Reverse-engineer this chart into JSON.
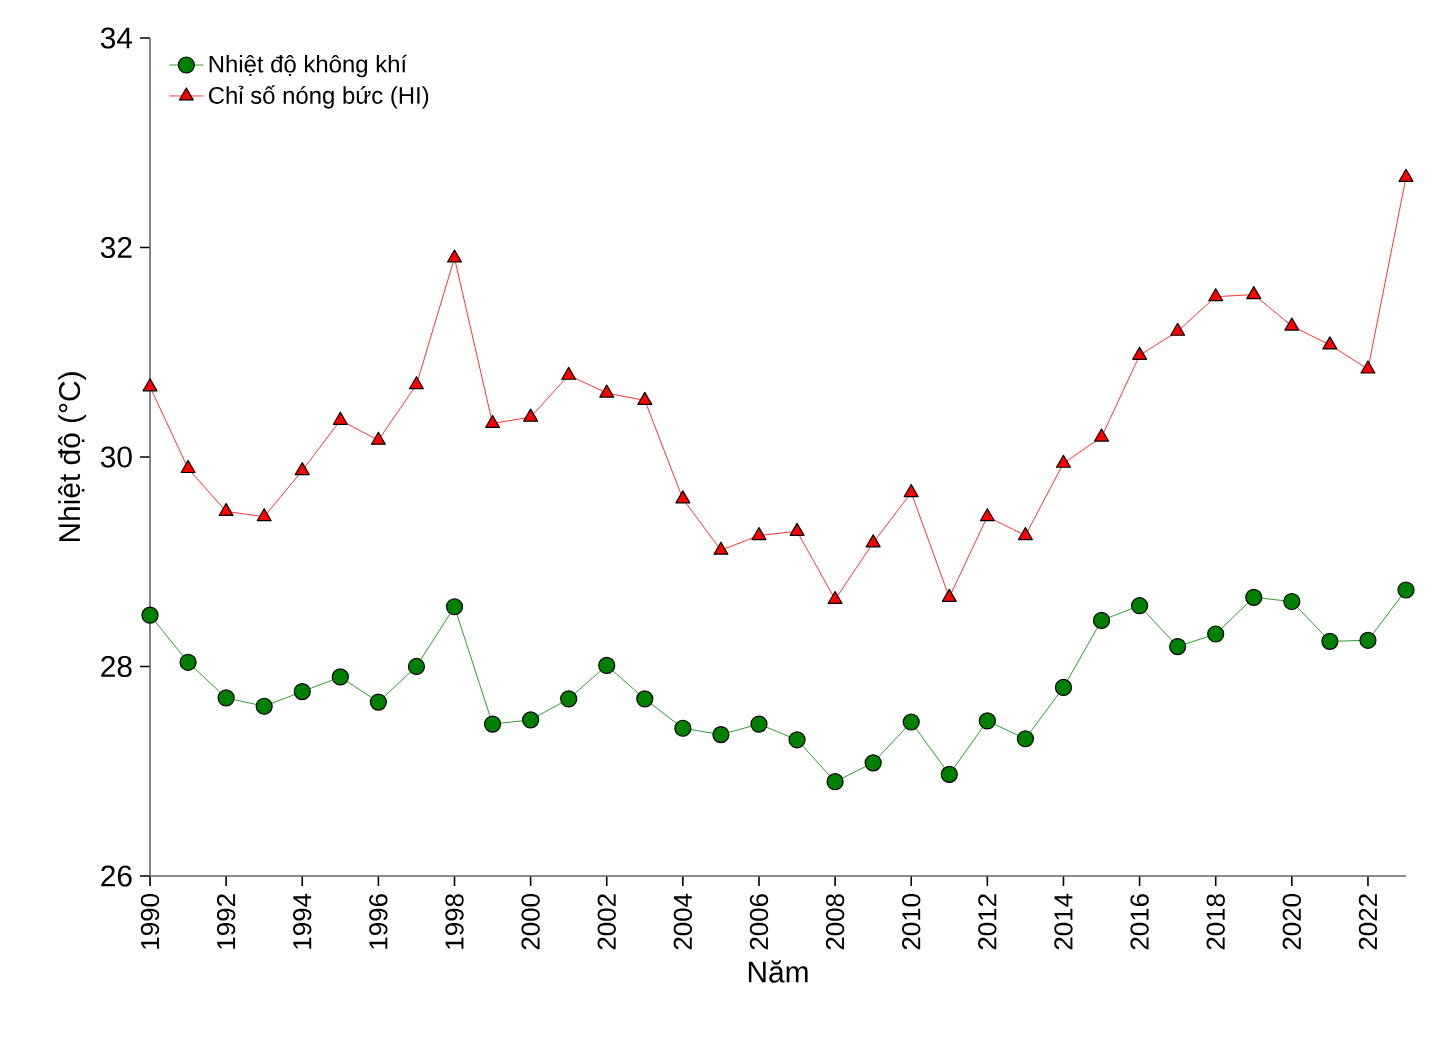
{
  "chart_data": {
    "type": "line",
    "xlabel": "Năm",
    "ylabel": "Nhiệt độ (°C)",
    "x": [
      1990,
      1991,
      1992,
      1993,
      1994,
      1995,
      1996,
      1997,
      1998,
      1999,
      2000,
      2001,
      2002,
      2003,
      2004,
      2005,
      2006,
      2007,
      2008,
      2009,
      2010,
      2011,
      2012,
      2013,
      2014,
      2015,
      2016,
      2017,
      2018,
      2019,
      2020,
      2021,
      2022,
      2023
    ],
    "series": [
      {
        "name": "Nhiệt độ không khí",
        "color": "#008000",
        "marker": "circle",
        "values": [
          28.49,
          28.04,
          27.7,
          27.62,
          27.76,
          27.9,
          27.66,
          28.0,
          28.57,
          27.45,
          27.49,
          27.69,
          28.01,
          27.69,
          27.41,
          27.35,
          27.45,
          27.3,
          26.9,
          27.08,
          27.47,
          26.97,
          27.48,
          27.31,
          27.8,
          28.44,
          28.58,
          28.19,
          28.31,
          28.66,
          28.62,
          28.24,
          28.25,
          28.73
        ]
      },
      {
        "name": "Chỉ số nóng bức (HI)",
        "color": "#ff0000",
        "marker": "triangle",
        "values": [
          30.67,
          29.89,
          29.48,
          29.43,
          29.87,
          30.35,
          30.16,
          30.69,
          31.9,
          30.32,
          30.38,
          30.78,
          30.61,
          30.54,
          29.6,
          29.11,
          29.25,
          29.29,
          28.64,
          29.18,
          29.66,
          28.66,
          29.43,
          29.25,
          29.94,
          30.19,
          30.97,
          31.2,
          31.53,
          31.55,
          31.25,
          31.07,
          30.84,
          32.67
        ]
      }
    ],
    "xlim": [
      1990,
      2023
    ],
    "xticks": [
      1990,
      1992,
      1994,
      1996,
      1998,
      2000,
      2002,
      2004,
      2006,
      2008,
      2010,
      2012,
      2014,
      2016,
      2018,
      2020,
      2022
    ],
    "ylim": [
      26,
      34
    ],
    "yticks": [
      26,
      28,
      30,
      32,
      34
    ],
    "grid": false,
    "legend": "top left",
    "line_style": "solid"
  }
}
